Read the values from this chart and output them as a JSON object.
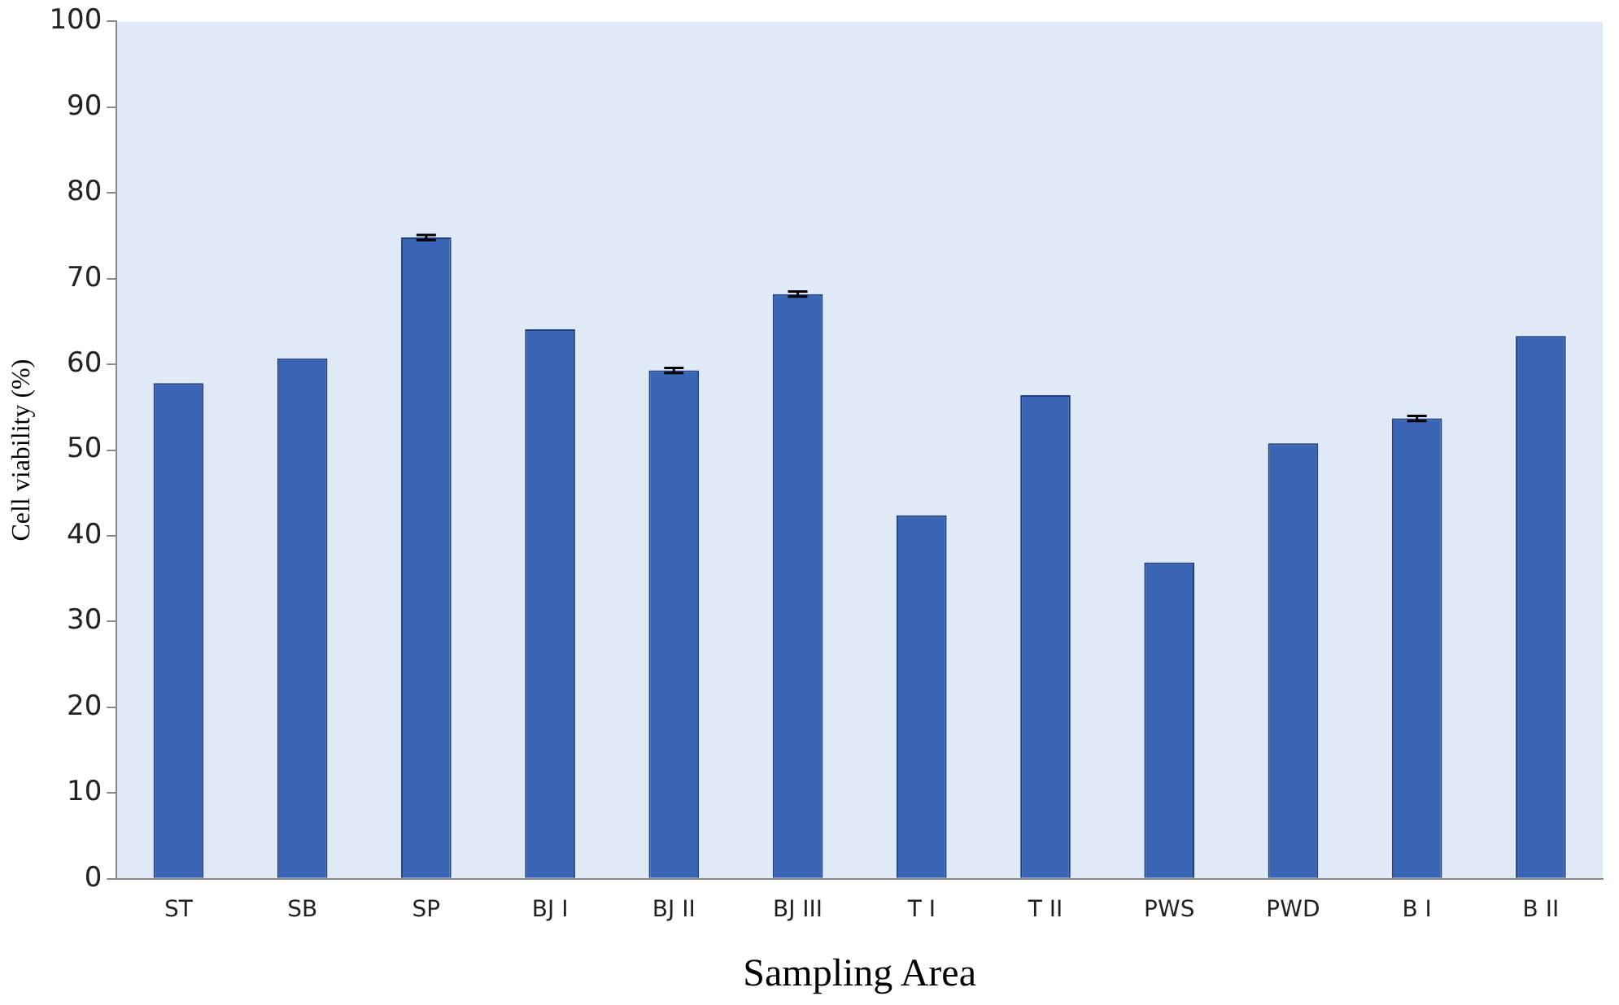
{
  "chart_data": {
    "type": "bar",
    "xlabel": "Sampling Area",
    "ylabel": "Cell viability (%)",
    "categories": [
      "ST",
      "SB",
      "SP",
      "BJ I",
      "BJ II",
      "BJ III",
      "T I",
      "T II",
      "PWS",
      "PWD",
      "B I",
      "B II"
    ],
    "values": [
      57.8,
      60.7,
      74.8,
      64.1,
      59.3,
      68.2,
      42.4,
      56.4,
      36.9,
      50.8,
      53.7,
      63.3
    ],
    "errors": [
      null,
      null,
      0.3,
      null,
      0.3,
      0.3,
      null,
      null,
      null,
      null,
      0.3,
      null
    ],
    "color": "#3a64b4",
    "ylim": [
      0,
      100
    ],
    "yticks": [
      0,
      10,
      20,
      30,
      40,
      50,
      60,
      70,
      80,
      90,
      100
    ],
    "grid": false,
    "legend": false
  }
}
